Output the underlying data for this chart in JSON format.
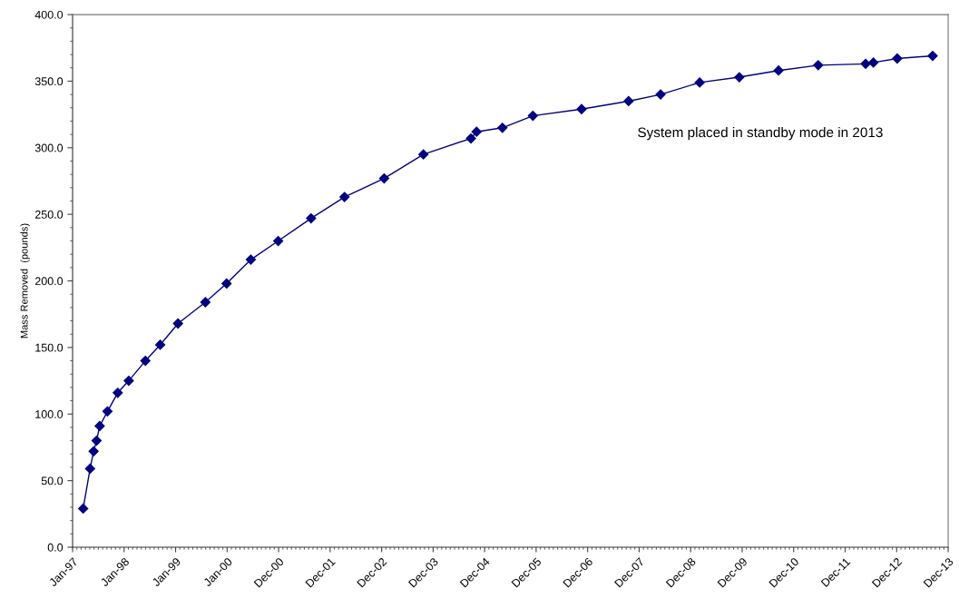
{
  "chart_data": {
    "type": "line",
    "ylabel": "Mass Removed  (pounds)",
    "annotations": [
      "System placed in standby mode in 2013"
    ],
    "x": [
      "1997-03-17",
      "1997-05-05",
      "1997-05-30",
      "1997-06-20",
      "1997-07-12",
      "1997-09-05",
      "1997-11-17",
      "1998-02-03",
      "1998-06-01",
      "1998-09-14",
      "1999-01-18",
      "1999-07-31",
      "1999-12-28",
      "2000-06-17",
      "2000-12-28",
      "2001-08-18",
      "2002-04-12",
      "2003-01-18",
      "2003-10-23",
      "2004-09-24",
      "2004-11-03",
      "2005-05-05",
      "2005-12-07",
      "2006-11-17",
      "2007-10-16",
      "2008-05-30",
      "2009-03-03",
      "2009-12-09",
      "2010-09-13",
      "2011-06-21",
      "2012-05-22",
      "2012-07-16",
      "2013-01-01",
      "2013-09-09"
    ],
    "series": [
      {
        "color": "#000080",
        "values": [
          29,
          59,
          72,
          80,
          91,
          102,
          116,
          125,
          140,
          152,
          168,
          184,
          198,
          216,
          230,
          247,
          263,
          277,
          295,
          307,
          312,
          315,
          324,
          329,
          335,
          340,
          349,
          353,
          358,
          362,
          363,
          364,
          367,
          369
        ]
      }
    ],
    "marker": "diamond",
    "line_style": "solid",
    "grid": false,
    "xlim": [
      "1997-01-01",
      "2013-12-28"
    ],
    "xticks": [
      {
        "value": "1997-01-01",
        "label": "Jan-97"
      },
      {
        "value": "1998-01-01",
        "label": "Jan-98"
      },
      {
        "value": "1999-01-01",
        "label": "Jan-99"
      },
      {
        "value": "2000-01-01",
        "label": "Jan-00"
      },
      {
        "value": "2000-12-31",
        "label": "Dec-00"
      },
      {
        "value": "2001-12-31",
        "label": "Dec-01"
      },
      {
        "value": "2002-12-31",
        "label": "Dec-02"
      },
      {
        "value": "2003-12-31",
        "label": "Dec-03"
      },
      {
        "value": "2004-12-30",
        "label": "Dec-04"
      },
      {
        "value": "2005-12-30",
        "label": "Dec-05"
      },
      {
        "value": "2006-12-30",
        "label": "Dec-06"
      },
      {
        "value": "2007-12-30",
        "label": "Dec-07"
      },
      {
        "value": "2008-12-29",
        "label": "Dec-08"
      },
      {
        "value": "2009-12-29",
        "label": "Dec-09"
      },
      {
        "value": "2010-12-29",
        "label": "Dec-10"
      },
      {
        "value": "2011-12-29",
        "label": "Dec-11"
      },
      {
        "value": "2012-12-28",
        "label": "Dec-12"
      },
      {
        "value": "2013-12-28",
        "label": "Dec-13"
      }
    ],
    "ylim": [
      0,
      400
    ],
    "yticks": [
      {
        "value": 0,
        "label": "0.0"
      },
      {
        "value": 50,
        "label": "50.0"
      },
      {
        "value": 100,
        "label": "100.0"
      },
      {
        "value": 150,
        "label": "150.0"
      },
      {
        "value": 200,
        "label": "200.0"
      },
      {
        "value": 250,
        "label": "250.0"
      },
      {
        "value": 300,
        "label": "300.0"
      },
      {
        "value": 350,
        "label": "350.0"
      },
      {
        "value": 400,
        "label": "400.0"
      }
    ]
  }
}
